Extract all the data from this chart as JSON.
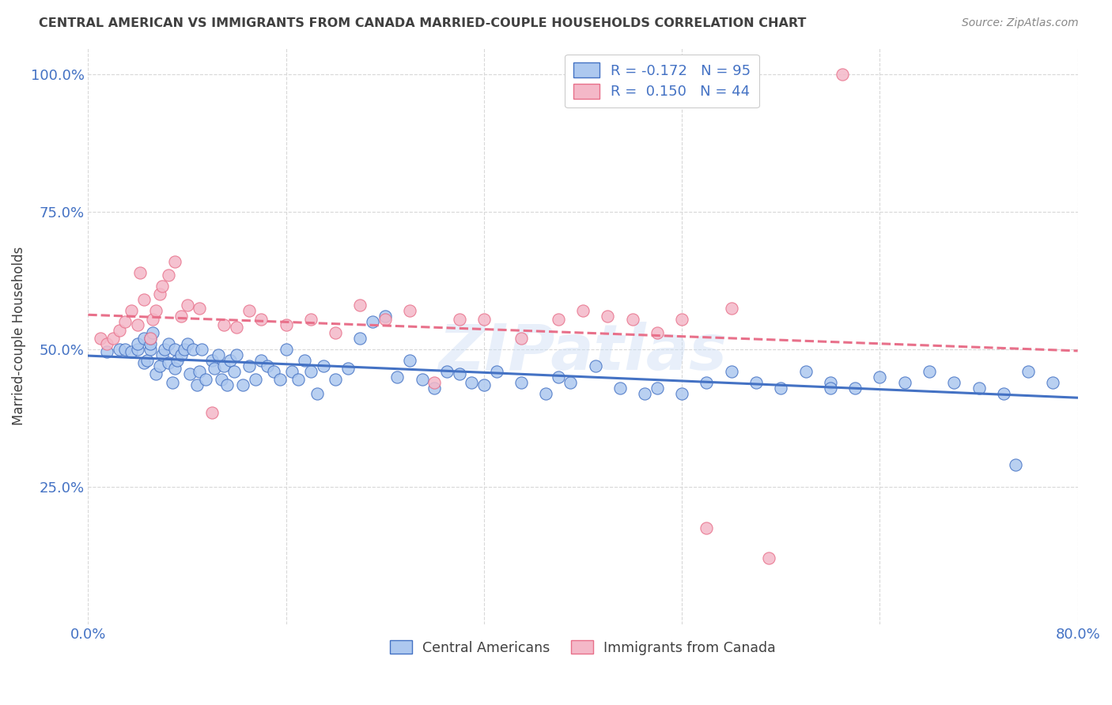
{
  "title": "CENTRAL AMERICAN VS IMMIGRANTS FROM CANADA MARRIED-COUPLE HOUSEHOLDS CORRELATION CHART",
  "source": "Source: ZipAtlas.com",
  "ylabel": "Married-couple Households",
  "xlim": [
    0.0,
    0.8
  ],
  "ylim": [
    0.0,
    1.05
  ],
  "legend_label1": "Central Americans",
  "legend_label2": "Immigrants from Canada",
  "r1": "-0.172",
  "n1": "95",
  "r2": "0.150",
  "n2": "44",
  "color_blue": "#adc8ef",
  "color_pink": "#f4b8c8",
  "line_color_blue": "#4472c4",
  "line_color_pink": "#e8708a",
  "background_color": "#ffffff",
  "grid_color": "#d8d8d8",
  "title_color": "#404040",
  "axis_label_color": "#4472c4",
  "watermark": "ZIPatlas",
  "blue_points_x": [
    0.015,
    0.025,
    0.03,
    0.035,
    0.04,
    0.04,
    0.045,
    0.045,
    0.048,
    0.05,
    0.05,
    0.05,
    0.052,
    0.055,
    0.058,
    0.06,
    0.062,
    0.065,
    0.065,
    0.068,
    0.07,
    0.07,
    0.072,
    0.075,
    0.078,
    0.08,
    0.082,
    0.085,
    0.088,
    0.09,
    0.092,
    0.095,
    0.1,
    0.102,
    0.105,
    0.108,
    0.11,
    0.112,
    0.115,
    0.118,
    0.12,
    0.125,
    0.13,
    0.135,
    0.14,
    0.145,
    0.15,
    0.155,
    0.16,
    0.165,
    0.17,
    0.175,
    0.18,
    0.185,
    0.19,
    0.2,
    0.21,
    0.22,
    0.23,
    0.24,
    0.25,
    0.26,
    0.27,
    0.28,
    0.29,
    0.3,
    0.31,
    0.32,
    0.33,
    0.35,
    0.37,
    0.38,
    0.39,
    0.41,
    0.43,
    0.45,
    0.46,
    0.48,
    0.5,
    0.52,
    0.54,
    0.56,
    0.58,
    0.6,
    0.62,
    0.64,
    0.66,
    0.68,
    0.7,
    0.72,
    0.74,
    0.76,
    0.78,
    0.6,
    0.75
  ],
  "blue_points_y": [
    0.495,
    0.5,
    0.5,
    0.495,
    0.5,
    0.51,
    0.52,
    0.475,
    0.48,
    0.5,
    0.51,
    0.52,
    0.53,
    0.455,
    0.47,
    0.49,
    0.5,
    0.51,
    0.475,
    0.44,
    0.465,
    0.5,
    0.48,
    0.49,
    0.5,
    0.51,
    0.455,
    0.5,
    0.435,
    0.46,
    0.5,
    0.445,
    0.48,
    0.465,
    0.49,
    0.445,
    0.47,
    0.435,
    0.48,
    0.46,
    0.49,
    0.435,
    0.47,
    0.445,
    0.48,
    0.47,
    0.46,
    0.445,
    0.5,
    0.46,
    0.445,
    0.48,
    0.46,
    0.42,
    0.47,
    0.445,
    0.465,
    0.52,
    0.55,
    0.56,
    0.45,
    0.48,
    0.445,
    0.43,
    0.46,
    0.455,
    0.44,
    0.435,
    0.46,
    0.44,
    0.42,
    0.45,
    0.44,
    0.47,
    0.43,
    0.42,
    0.43,
    0.42,
    0.44,
    0.46,
    0.44,
    0.43,
    0.46,
    0.44,
    0.43,
    0.45,
    0.44,
    0.46,
    0.44,
    0.43,
    0.42,
    0.46,
    0.44,
    0.43,
    0.29
  ],
  "pink_points_x": [
    0.01,
    0.015,
    0.02,
    0.025,
    0.03,
    0.035,
    0.04,
    0.042,
    0.045,
    0.05,
    0.052,
    0.055,
    0.058,
    0.06,
    0.065,
    0.07,
    0.075,
    0.08,
    0.09,
    0.1,
    0.11,
    0.12,
    0.13,
    0.14,
    0.16,
    0.18,
    0.2,
    0.22,
    0.24,
    0.26,
    0.28,
    0.3,
    0.32,
    0.35,
    0.38,
    0.4,
    0.42,
    0.44,
    0.46,
    0.48,
    0.5,
    0.52,
    0.55,
    0.61
  ],
  "pink_points_y": [
    0.52,
    0.51,
    0.52,
    0.535,
    0.55,
    0.57,
    0.545,
    0.64,
    0.59,
    0.52,
    0.555,
    0.57,
    0.6,
    0.615,
    0.635,
    0.66,
    0.56,
    0.58,
    0.575,
    0.385,
    0.545,
    0.54,
    0.57,
    0.555,
    0.545,
    0.555,
    0.53,
    0.58,
    0.555,
    0.57,
    0.44,
    0.555,
    0.555,
    0.52,
    0.555,
    0.57,
    0.56,
    0.555,
    0.53,
    0.555,
    0.175,
    0.575,
    0.12,
    1.0
  ]
}
